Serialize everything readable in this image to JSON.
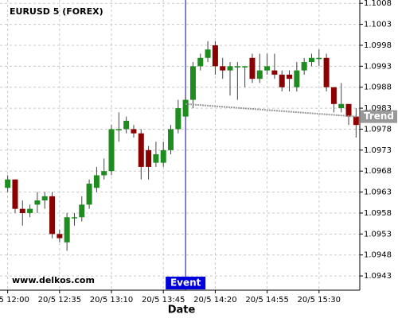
{
  "chart_data": {
    "type": "candlestick",
    "title": "EURUSD 5 (FOREX)",
    "x_label": "Date",
    "watermark": "www.delkos.com",
    "categories": [
      "20/5 12:00",
      null,
      null,
      null,
      null,
      null,
      null,
      "20/5 12:35",
      null,
      null,
      null,
      null,
      null,
      null,
      "20/5 13:10",
      null,
      null,
      null,
      null,
      null,
      null,
      "20/5 13:45",
      null,
      null,
      null,
      null,
      null,
      null,
      "20/5 14:20",
      null,
      null,
      null,
      null,
      null,
      null,
      "20/5 14:55",
      null,
      null,
      null,
      null,
      null,
      null,
      "20/5 15:30",
      null,
      null,
      null,
      null,
      null
    ],
    "open": [
      1.0964,
      1.0966,
      1.0959,
      1.0958,
      1.096,
      1.0961,
      1.0962,
      1.0953,
      1.0951,
      1.0957,
      1.0957,
      1.096,
      1.0964,
      1.0967,
      1.0968,
      1.0978,
      1.0978,
      1.0978,
      1.0977,
      1.0973,
      1.097,
      1.097,
      1.0973,
      1.0978,
      1.0981,
      1.0985,
      1.0993,
      1.0995,
      1.0998,
      1.0993,
      1.0992,
      1.0993,
      1.0993,
      1.0995,
      1.099,
      1.0992,
      1.0992,
      1.0991,
      1.0991,
      1.0988,
      1.0992,
      1.0994,
      1.0995,
      1.0995,
      1.0988,
      1.0983,
      1.0984,
      1.0981
    ],
    "high": [
      1.0967,
      1.0966,
      1.0961,
      1.096,
      1.0963,
      1.0963,
      1.0963,
      1.0954,
      1.0958,
      1.0958,
      1.0962,
      1.0966,
      1.0969,
      1.0971,
      1.0979,
      1.0982,
      1.0981,
      1.0979,
      1.0978,
      1.0974,
      1.0975,
      1.0975,
      1.0979,
      1.0985,
      1.0986,
      1.0994,
      1.0996,
      1.0999,
      1.0999,
      1.0995,
      1.0994,
      1.0994,
      1.0993,
      1.0996,
      1.0996,
      1.0996,
      1.0996,
      1.0992,
      1.0992,
      1.0994,
      1.0995,
      1.0996,
      1.0997,
      1.0996,
      1.0988,
      1.0989,
      1.0984,
      1.0983
    ],
    "low": [
      1.0963,
      1.0958,
      1.0955,
      1.0957,
      1.0958,
      1.0959,
      1.0952,
      1.0951,
      1.0949,
      1.0955,
      1.0956,
      1.0959,
      1.0963,
      1.0966,
      1.0967,
      1.0975,
      1.0977,
      1.0976,
      1.0966,
      1.0966,
      1.0969,
      1.0969,
      1.0972,
      1.0977,
      1.0981,
      1.0983,
      1.0992,
      1.0994,
      1.0991,
      1.099,
      1.0986,
      1.0985,
      1.0988,
      1.0989,
      1.0989,
      1.0991,
      1.099,
      1.0987,
      1.0987,
      1.0987,
      1.0991,
      1.0993,
      1.0993,
      1.0987,
      1.0982,
      1.0982,
      1.0979,
      1.0976
    ],
    "close": [
      1.0966,
      1.0959,
      1.0958,
      1.0959,
      1.0961,
      1.0962,
      1.0953,
      1.0952,
      1.0957,
      1.0957,
      1.096,
      1.0965,
      1.0967,
      1.0968,
      1.0978,
      1.0978,
      1.098,
      1.0977,
      1.0969,
      1.0969,
      1.0972,
      1.0973,
      1.0978,
      1.0983,
      1.0985,
      1.0993,
      1.0995,
      1.0997,
      1.0993,
      1.0992,
      1.0993,
      1.0993,
      1.0993,
      1.099,
      1.0992,
      1.0993,
      1.0991,
      1.0988,
      1.099,
      1.0992,
      1.0994,
      1.0995,
      1.0995,
      1.0988,
      1.0984,
      1.0984,
      1.0981,
      1.0979
    ],
    "up_color": "#1e8c1e",
    "down_color": "#8b0000",
    "ylim": [
      1.09396,
      1.10088
    ],
    "yticks": [
      1.0943,
      1.0948,
      1.0953,
      1.0958,
      1.0963,
      1.0968,
      1.0973,
      1.0978,
      1.0983,
      1.0988,
      1.0993,
      1.0998,
      1.1003,
      1.1008
    ],
    "grid": true,
    "event": {
      "label": "Event",
      "at": 24,
      "color": "#0000dd"
    },
    "trend": {
      "label": "Trend",
      "start": [
        24,
        1.0984
      ],
      "end": [
        47,
        1.0981
      ],
      "color": "#999999"
    }
  }
}
